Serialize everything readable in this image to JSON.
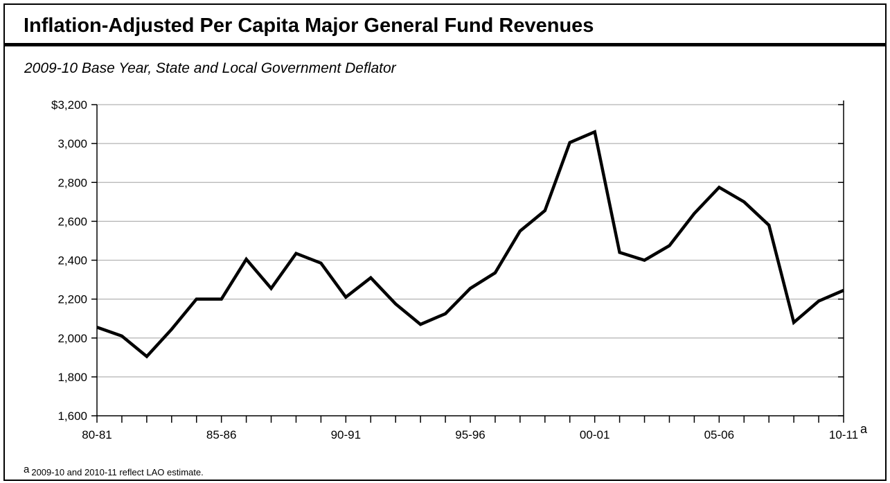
{
  "title": "Inflation-Adjusted Per Capita Major General Fund Revenues",
  "subtitle": "2009-10 Base Year, State and Local Government Deflator",
  "footnote": {
    "marker": "a",
    "text": "2009-10 and 2010-11 reflect LAO estimate."
  },
  "chart_data": {
    "type": "line",
    "title": "Inflation-Adjusted Per Capita Major General Fund Revenues",
    "subtitle": "2009-10 Base Year, State and Local Government Deflator",
    "xlabel": "",
    "ylabel": "",
    "x": [
      "80-81",
      "81-82",
      "82-83",
      "83-84",
      "84-85",
      "85-86",
      "86-87",
      "87-88",
      "88-89",
      "89-90",
      "90-91",
      "91-92",
      "92-93",
      "93-94",
      "94-95",
      "95-96",
      "96-97",
      "97-98",
      "98-99",
      "99-00",
      "00-01",
      "01-02",
      "02-03",
      "03-04",
      "04-05",
      "05-06",
      "06-07",
      "07-08",
      "08-09",
      "09-10",
      "10-11"
    ],
    "x_tick_labels": [
      "80-81",
      "85-86",
      "90-91",
      "95-96",
      "00-01",
      "05-06",
      "10-11"
    ],
    "x_tick_label_superscript": {
      "10-11": "a"
    },
    "series": [
      {
        "values": [
          2055,
          2010,
          1905,
          2045,
          2200,
          2200,
          2405,
          2255,
          2435,
          2385,
          2210,
          2310,
          2175,
          2070,
          2125,
          2255,
          2335,
          2550,
          2655,
          3005,
          3060,
          2440,
          2400,
          2475,
          2640,
          2775,
          2700,
          2580,
          2080,
          2190,
          2245
        ],
        "color": "#000000"
      }
    ],
    "ylim": [
      1600,
      3200
    ],
    "y_ticks": [
      1600,
      1800,
      2000,
      2200,
      2400,
      2600,
      2800,
      3000,
      3200
    ],
    "y_tick_labels": [
      "1,600",
      "1,800",
      "2,000",
      "2,200",
      "2,400",
      "2,600",
      "2,800",
      "3,000",
      "$3,200"
    ],
    "grid": true,
    "legend": "none"
  },
  "colors": {
    "line": "#000000",
    "grid": "#b3b3b3",
    "axis": "#000000"
  }
}
